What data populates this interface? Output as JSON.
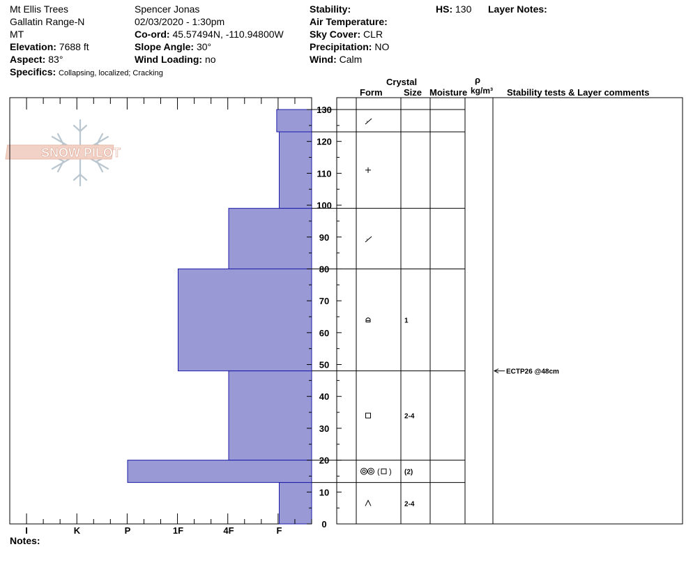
{
  "header": {
    "location": "Mt Ellis Trees",
    "range": "Gallatin Range-N",
    "state": "MT",
    "observer": "Spencer Jonas",
    "datetime": "02/03/2020 - 1:30pm",
    "elevation_label": "Elevation:",
    "elevation_value": "7688 ft",
    "aspect_label": "Aspect:",
    "aspect_value": "83°",
    "specifics_label": "Specifics:",
    "specifics_value": "Collapsing, localized;  Cracking",
    "coord_label": "Co-ord:",
    "coord_value": "45.57494N, -110.94800W",
    "slope_label": "Slope Angle:",
    "slope_value": "30°",
    "wind_loading_label": "Wind Loading:",
    "wind_loading_value": "no",
    "stability_label": "Stability:",
    "stability_value": "",
    "air_temp_label": "Air Temperature:",
    "air_temp_value": "",
    "sky_label": "Sky Cover:",
    "sky_value": "CLR",
    "precip_label": "Precipitation:",
    "precip_value": "NO",
    "wind_label": "Wind:",
    "wind_value": "Calm",
    "hs_label": "HS:",
    "hs_value": "130",
    "layer_notes_label": "Layer Notes:",
    "notes_label": "Notes:"
  },
  "logo_text": "SNOW PILOT",
  "columns": {
    "crystal": "Crystal",
    "form": "Form",
    "size": "Size",
    "moisture": "Moisture",
    "rho": "ρ",
    "density_unit": "kg/m³",
    "stability_tests": "Stability tests & Layer comments"
  },
  "colors": {
    "hardness_fill": "#9999d6",
    "hardness_stroke": "#1c1ca8"
  },
  "chart_data": {
    "type": "bar",
    "orientation": "horizontal",
    "hardness_scale": [
      "I",
      "K",
      "P",
      "1F",
      "4F",
      "F"
    ],
    "hardness_scale_positions": {
      "I": 0,
      "K": 1,
      "P": 2,
      "1F": 3,
      "4F": 4,
      "F": 5,
      "max": 5.67
    },
    "height_axis": {
      "min": 0,
      "max": 130,
      "unit": "cm",
      "ticks": [
        0,
        10,
        20,
        30,
        40,
        50,
        60,
        70,
        80,
        90,
        100,
        110,
        120,
        130
      ]
    },
    "layers": [
      {
        "top": 130,
        "bottom": 123,
        "hardness": "F+",
        "hardness_value": 4.95,
        "form": "decomposing-fragments",
        "size": ""
      },
      {
        "top": 123,
        "bottom": 99,
        "hardness": "F",
        "hardness_value": 5.0,
        "form": "precipitation-particles",
        "size": ""
      },
      {
        "top": 99,
        "bottom": 80,
        "hardness": "4F",
        "hardness_value": 4.0,
        "form": "decomposing-fragments",
        "size": ""
      },
      {
        "top": 80,
        "bottom": 48,
        "hardness": "1F",
        "hardness_value": 3.0,
        "form": "rounded-facets",
        "size": "1"
      },
      {
        "top": 48,
        "bottom": 20,
        "hardness": "4F",
        "hardness_value": 4.0,
        "form": "faceted-crystals",
        "size": "2-4"
      },
      {
        "top": 20,
        "bottom": 13,
        "hardness": "P",
        "hardness_value": 2.0,
        "form": "melt-forms-facets",
        "size": "(2)"
      },
      {
        "top": 13,
        "bottom": 0,
        "hardness": "F",
        "hardness_value": 5.0,
        "form": "depth-hoar",
        "size": "2-4"
      }
    ],
    "stability_tests": [
      {
        "height": 48,
        "text": "ECTP26 @48cm"
      }
    ]
  }
}
